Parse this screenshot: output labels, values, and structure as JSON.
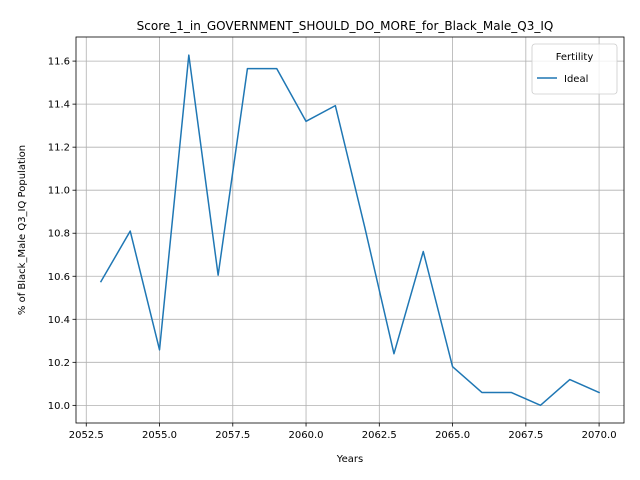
{
  "chart_data": {
    "type": "line",
    "title": "Score_1_in_GOVERNMENT_SHOULD_DO_MORE_for_Black_Male_Q3_IQ",
    "xlabel": "Years",
    "ylabel": "% of Black_Male Q3_IQ Population",
    "xlim": [
      2052.15,
      2070.85
    ],
    "ylim": [
      9.918,
      11.712
    ],
    "xticks": [
      2052.5,
      2055.0,
      2057.5,
      2060.0,
      2062.5,
      2065.0,
      2067.5,
      2070.0
    ],
    "xtick_labels": [
      "2052.5",
      "2055.0",
      "2057.5",
      "2060.0",
      "2062.5",
      "2065.0",
      "2067.5",
      "2070.0"
    ],
    "yticks": [
      10.0,
      10.2,
      10.4,
      10.6,
      10.8,
      11.0,
      11.2,
      11.4,
      11.6
    ],
    "ytick_labels": [
      "10.0",
      "10.2",
      "10.4",
      "10.6",
      "10.8",
      "11.0",
      "11.2",
      "11.4",
      "11.6"
    ],
    "grid": true,
    "legend": {
      "title": "Fertility",
      "placement": "top-right"
    },
    "series": [
      {
        "name": "Ideal",
        "color": "#1f77b4",
        "x": [
          2053,
          2054,
          2055,
          2056,
          2057,
          2058,
          2059,
          2060,
          2061,
          2062,
          2063,
          2064,
          2065,
          2066,
          2067,
          2068,
          2069,
          2070
        ],
        "y": [
          10.575,
          10.81,
          10.258,
          11.628,
          10.605,
          11.565,
          11.565,
          11.32,
          11.393,
          10.83,
          10.24,
          10.715,
          10.18,
          10.06,
          10.06,
          10.0,
          10.12,
          10.06
        ]
      }
    ]
  }
}
